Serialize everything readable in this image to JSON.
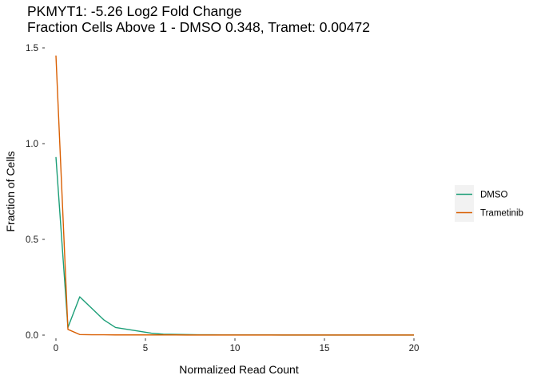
{
  "chart_data": {
    "type": "line",
    "title": "PKMYT1: -5.26 Log2 Fold Change",
    "subtitle": "Fraction Cells Above 1 - DMSO 0.348, Tramet: 0.00472",
    "xlabel": "Normalized Read Count",
    "ylabel": "Fraction of Cells",
    "xlim": [
      0,
      20
    ],
    "ylim": [
      0,
      1.5
    ],
    "x_ticks": [
      0,
      5,
      10,
      15,
      20
    ],
    "y_ticks": [
      0.0,
      0.5,
      1.0,
      1.5
    ],
    "x_tick_labels": [
      "0",
      "5",
      "10",
      "15",
      "20"
    ],
    "y_tick_labels": [
      "0.0",
      "0.5",
      "1.0",
      "1.5"
    ],
    "grid": false,
    "legend_position": "right",
    "series": [
      {
        "name": "DMSO",
        "color": "#1b9e77",
        "x": [
          0,
          0.67,
          1.33,
          2.0,
          2.67,
          3.33,
          4.0,
          4.67,
          5.33,
          6.0,
          6.67,
          7.33,
          8.0,
          8.67,
          9.33,
          10.0,
          10.67,
          11.33,
          12.0,
          12.67,
          13.33,
          14.0,
          14.67,
          15.33,
          16.0,
          16.67,
          17.33,
          18.0,
          18.67,
          19.33,
          20.0
        ],
        "y": [
          0.93,
          0.04,
          0.2,
          0.14,
          0.08,
          0.04,
          0.03,
          0.02,
          0.01,
          0.005,
          0.004,
          0.003,
          0.002,
          0.002,
          0.001,
          0.001,
          0.001,
          0.001,
          0.001,
          0.0005,
          0.0005,
          0.0005,
          0.0005,
          0.0005,
          0.0005,
          0.0005,
          0.0005,
          0.0005,
          0.0005,
          0.0005,
          0.0005
        ]
      },
      {
        "name": "Trametinib",
        "color": "#d95f02",
        "x": [
          0,
          0.67,
          1.33,
          2.0,
          2.67,
          3.33,
          4.0,
          4.67,
          5.33,
          6.0,
          6.67,
          7.33,
          8.0,
          8.67,
          9.33,
          10.0,
          10.67,
          11.33,
          12.0,
          12.67,
          13.33,
          14.0,
          14.67,
          15.33,
          16.0,
          16.67,
          17.33,
          18.0,
          18.67,
          19.33,
          20.0
        ],
        "y": [
          1.46,
          0.03,
          0.003,
          0.002,
          0.002,
          0.001,
          0.001,
          0.001,
          0.001,
          0.001,
          0.001,
          0.0005,
          0.0005,
          0.0005,
          0.0005,
          0.0005,
          0.0005,
          0.0005,
          0.0005,
          0.0005,
          0.0005,
          0.0005,
          0.0005,
          0.0005,
          0.0005,
          0.0005,
          0.0005,
          0.0005,
          0.0005,
          0.0005,
          0.0005
        ]
      }
    ]
  }
}
